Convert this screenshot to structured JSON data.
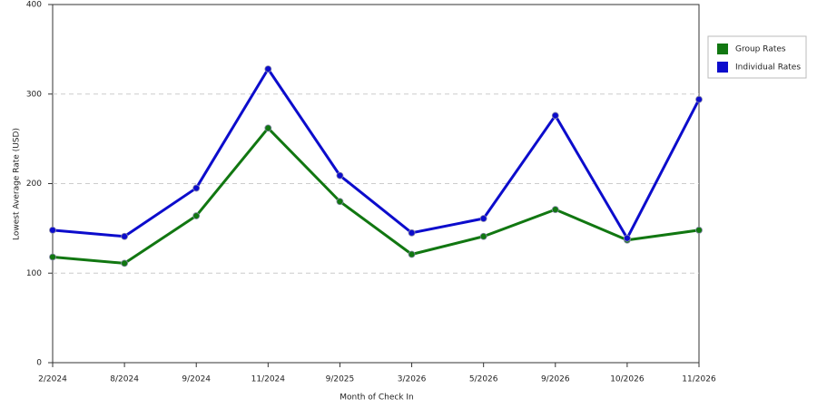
{
  "chart_data": {
    "type": "line",
    "x_label": "Month of Check In",
    "y_label": "Lowest Average Rate (USD)",
    "categories": [
      "2/2024",
      "8/2024",
      "9/2024",
      "11/2024",
      "9/2025",
      "3/2026",
      "5/2026",
      "9/2026",
      "10/2026",
      "11/2026"
    ],
    "series": [
      {
        "name": "Group Rates",
        "color": "#117711",
        "values": [
          118,
          111,
          164,
          262,
          180,
          121,
          141,
          171,
          137,
          148
        ]
      },
      {
        "name": "Individual Rates",
        "color": "#0c0ccc",
        "values": [
          148,
          141,
          195,
          328,
          209,
          145,
          161,
          276,
          139,
          294
        ]
      }
    ],
    "ylim": [
      0,
      400
    ],
    "yticks": [
      0,
      100,
      200,
      300,
      400
    ],
    "grid": true,
    "legend": "right"
  }
}
